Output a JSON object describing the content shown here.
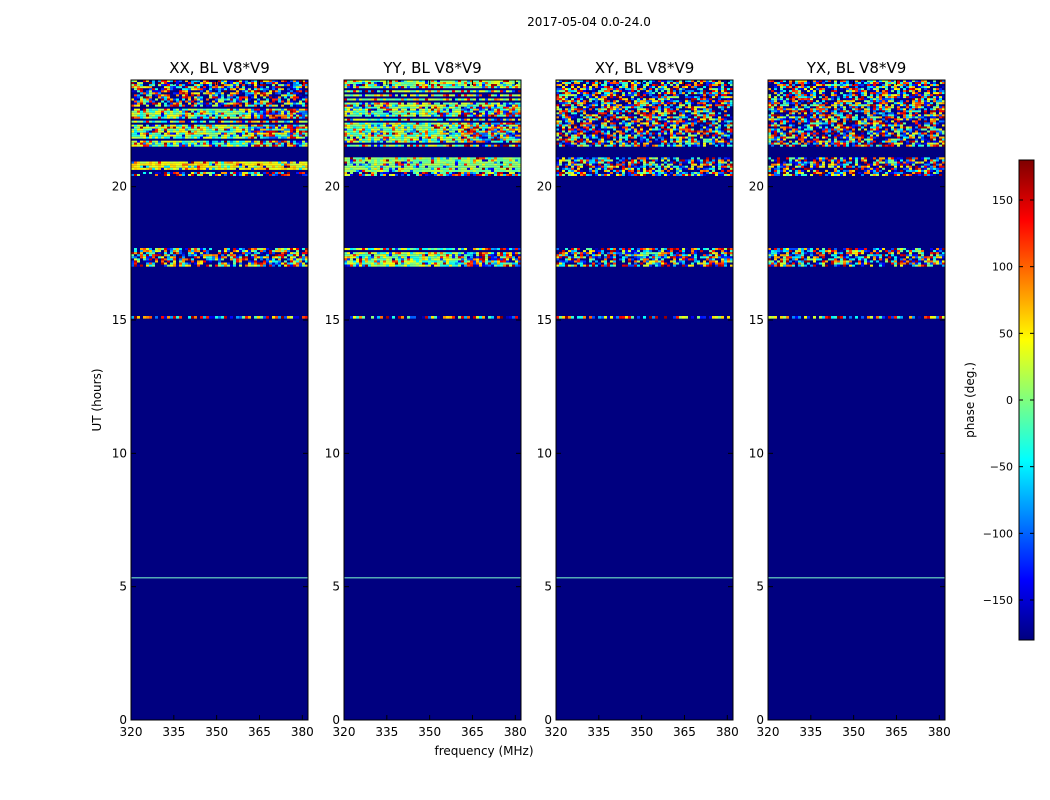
{
  "figure": {
    "suptitle": "2017-05-04 0.0-24.0"
  },
  "chart_data": {
    "type": "heatmap",
    "suptitle": "2017-05-04 0.0-24.0",
    "xlabel": "frequency (MHz)",
    "ylabel": "UT (hours)",
    "xlim": [
      320,
      382
    ],
    "ylim": [
      0,
      24
    ],
    "xticks": [
      320,
      335,
      350,
      365,
      380
    ],
    "yticks": [
      0,
      5,
      10,
      15,
      20
    ],
    "colormap": "jet",
    "colorbar": {
      "label": "phase (deg.)",
      "range": [
        -180,
        180
      ],
      "ticks": [
        -150,
        -100,
        -50,
        0,
        50,
        100,
        150
      ],
      "tick_labels": [
        "−150",
        "−100",
        "−50",
        "0",
        "50",
        "100",
        "150"
      ],
      "colors": [
        "#00007f",
        "#0000ff",
        "#007fff",
        "#00ffff",
        "#7fff7f",
        "#ffff00",
        "#ff7f00",
        "#ff0000",
        "#7f0000"
      ]
    },
    "background_value": -180,
    "panels": [
      {
        "title": "XX, BL V8*V9",
        "bands": [
          {
            "from": 5.3,
            "to": 5.35,
            "style": "faint"
          },
          {
            "from": 15.05,
            "to": 15.15,
            "style": "noise"
          },
          {
            "from": 17.0,
            "to": 17.7,
            "style": "noise"
          },
          {
            "from": 20.4,
            "to": 20.55,
            "style": "noise"
          },
          {
            "from": 20.55,
            "to": 21.1,
            "style": "yellow-green"
          },
          {
            "from": 21.5,
            "to": 23.0,
            "style": "mixed"
          },
          {
            "from": 23.0,
            "to": 24.0,
            "style": "noise"
          }
        ]
      },
      {
        "title": "YY, BL V8*V9",
        "bands": [
          {
            "from": 5.3,
            "to": 5.35,
            "style": "faint"
          },
          {
            "from": 15.05,
            "to": 15.15,
            "style": "noise"
          },
          {
            "from": 17.0,
            "to": 17.7,
            "style": "mixed"
          },
          {
            "from": 20.4,
            "to": 20.55,
            "style": "noise"
          },
          {
            "from": 20.55,
            "to": 21.1,
            "style": "green"
          },
          {
            "from": 21.5,
            "to": 23.0,
            "style": "mixed"
          },
          {
            "from": 23.0,
            "to": 24.0,
            "style": "green-noise"
          }
        ]
      },
      {
        "title": "XY, BL V8*V9",
        "bands": [
          {
            "from": 5.3,
            "to": 5.35,
            "style": "faint"
          },
          {
            "from": 15.05,
            "to": 15.15,
            "style": "noise"
          },
          {
            "from": 17.0,
            "to": 17.7,
            "style": "noise"
          },
          {
            "from": 20.4,
            "to": 20.55,
            "style": "noise"
          },
          {
            "from": 20.55,
            "to": 21.1,
            "style": "noise"
          },
          {
            "from": 21.5,
            "to": 24.0,
            "style": "noise"
          }
        ]
      },
      {
        "title": "YX, BL V8*V9",
        "bands": [
          {
            "from": 5.3,
            "to": 5.35,
            "style": "faint"
          },
          {
            "from": 15.05,
            "to": 15.15,
            "style": "noise"
          },
          {
            "from": 17.0,
            "to": 17.7,
            "style": "noise"
          },
          {
            "from": 20.4,
            "to": 20.55,
            "style": "noise"
          },
          {
            "from": 20.55,
            "to": 21.1,
            "style": "noise"
          },
          {
            "from": 21.5,
            "to": 24.0,
            "style": "noise"
          }
        ]
      }
    ]
  }
}
